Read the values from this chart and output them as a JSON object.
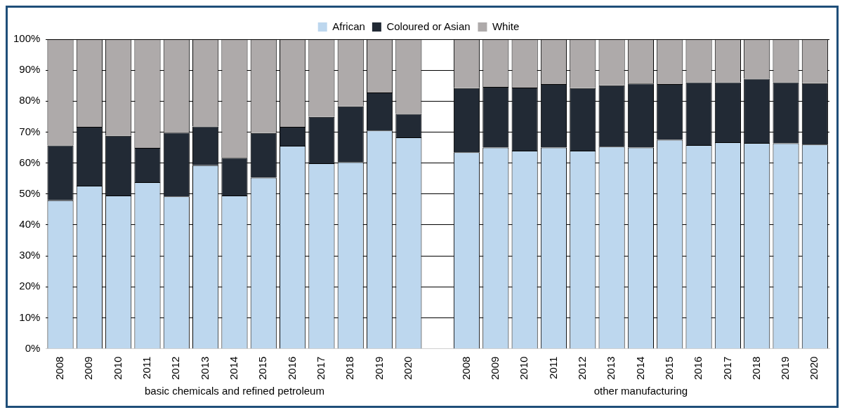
{
  "chart_data": {
    "type": "bar",
    "stacked": true,
    "categories": [
      "2008",
      "2009",
      "2010",
      "2011",
      "2012",
      "2013",
      "2014",
      "2015",
      "2016",
      "2017",
      "2018",
      "2019",
      "2020",
      null,
      "2008",
      "2009",
      "2010",
      "2011",
      "2012",
      "2013",
      "2014",
      "2015",
      "2016",
      "2017",
      "2018",
      "2019",
      "2020"
    ],
    "series": [
      {
        "name": "African",
        "color": "#bdd7ee",
        "values": [
          48,
          52.7,
          49.5,
          53.8,
          49.2,
          59.3,
          49.5,
          55.3,
          65.6,
          59.9,
          60.3,
          70.5,
          68.3,
          null,
          63.5,
          65.0,
          64.0,
          65.0,
          64.0,
          65.3,
          65.0,
          67.5,
          65.8,
          66.7,
          66.5,
          66.4,
          66.0
        ]
      },
      {
        "name": "Coloured or Asian",
        "color": "#222a35",
        "values": [
          17.7,
          19.0,
          19.3,
          11.1,
          20.6,
          12.5,
          12.2,
          14.4,
          6.1,
          15.0,
          18.0,
          12.3,
          7.6,
          null,
          20.7,
          19.6,
          20.4,
          20.5,
          20.2,
          19.8,
          20.7,
          18.0,
          20.3,
          19.4,
          20.7,
          19.7,
          19.8
        ]
      },
      {
        "name": "White",
        "color": "#aeaaaa",
        "values": [
          34.3,
          28.3,
          31.2,
          35.1,
          30.2,
          28.2,
          38.3,
          30.3,
          28.3,
          25.1,
          21.7,
          17.2,
          24.1,
          null,
          15.8,
          15.4,
          15.6,
          14.5,
          15.8,
          14.9,
          14.3,
          14.5,
          13.9,
          13.9,
          12.8,
          13.9,
          14.2
        ]
      }
    ],
    "ylim": [
      0,
      100
    ],
    "yticks": [
      {
        "value": 0,
        "label": "0%"
      },
      {
        "value": 10,
        "label": "10%"
      },
      {
        "value": 20,
        "label": "20%"
      },
      {
        "value": 30,
        "label": "30%"
      },
      {
        "value": 40,
        "label": "40%"
      },
      {
        "value": 50,
        "label": "50%"
      },
      {
        "value": 60,
        "label": "60%"
      },
      {
        "value": 70,
        "label": "70%"
      },
      {
        "value": 80,
        "label": "80%"
      },
      {
        "value": 90,
        "label": "90%"
      },
      {
        "value": 100,
        "label": "100%"
      }
    ],
    "grid": "y",
    "legend": "top",
    "annotations": [
      "basic chemicals and refined petroleum",
      "other manufacturing"
    ]
  }
}
